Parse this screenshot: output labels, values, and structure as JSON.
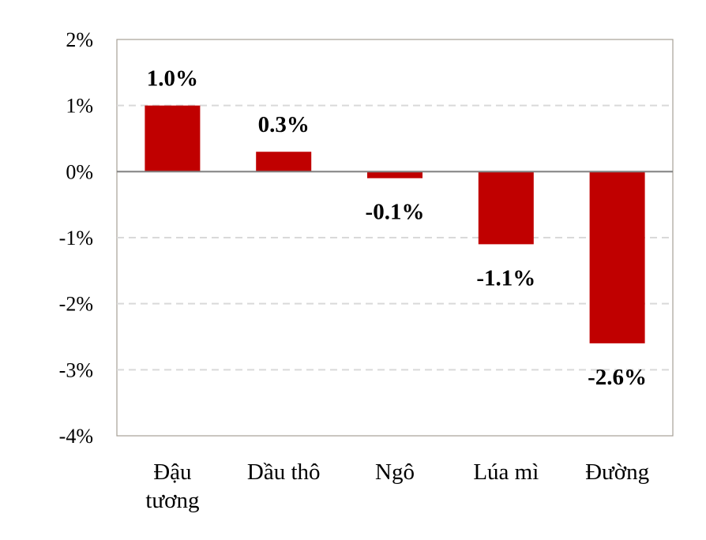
{
  "chart_data": {
    "type": "bar",
    "categories": [
      [
        "Đậu",
        "tương"
      ],
      [
        "Dầu thô"
      ],
      [
        "Ngô"
      ],
      [
        "Lúa mì"
      ],
      [
        "Đường"
      ]
    ],
    "values": [
      1.0,
      0.3,
      -0.1,
      -1.1,
      -2.6
    ],
    "data_labels": [
      "1.0%",
      "0.3%",
      "-0.1%",
      "-1.1%",
      "-2.6%"
    ],
    "yticks": [
      2,
      1,
      0,
      -1,
      -2,
      -3,
      -4
    ],
    "ytick_labels": [
      "2%",
      "1%",
      "0%",
      "-1%",
      "-2%",
      "-3%",
      "-4%"
    ],
    "ylim": [
      -4,
      2
    ],
    "grid": "dashed horizontal",
    "title": "",
    "xlabel": "",
    "ylabel": "",
    "colors": {
      "bar": "#c00000",
      "grid": "#d9d9d9",
      "axis": "#7f7f7f",
      "frame": "#a6a096"
    }
  }
}
